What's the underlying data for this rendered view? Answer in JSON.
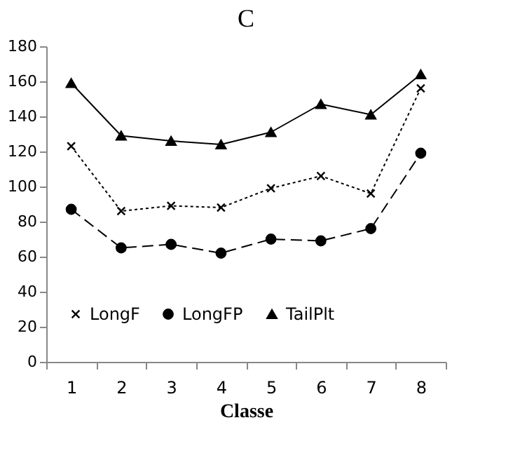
{
  "chart_data": {
    "type": "line",
    "title": "C",
    "xlabel": "Classe",
    "categories": [
      "1",
      "2",
      "3",
      "4",
      "5",
      "6",
      "7",
      "8"
    ],
    "series": [
      {
        "name": "LongF",
        "color": "#000000",
        "marker": "cross",
        "line_style": "dotted",
        "values": [
          123,
          86,
          89,
          88,
          99,
          106,
          96,
          156
        ]
      },
      {
        "name": "LongFP",
        "color": "#000000",
        "marker": "circle",
        "line_style": "dashed",
        "values": [
          87,
          65,
          67,
          62,
          70,
          69,
          76,
          119
        ]
      },
      {
        "name": "TailPlt",
        "color": "#000000",
        "marker": "triangle",
        "line_style": "solid",
        "values": [
          159,
          129,
          126,
          124,
          131,
          147,
          141,
          164
        ]
      }
    ],
    "ylim": [
      0,
      180
    ],
    "yticks": [
      0,
      20,
      40,
      60,
      80,
      100,
      120,
      140,
      160,
      180
    ],
    "grid": false,
    "legend": "bottom"
  }
}
